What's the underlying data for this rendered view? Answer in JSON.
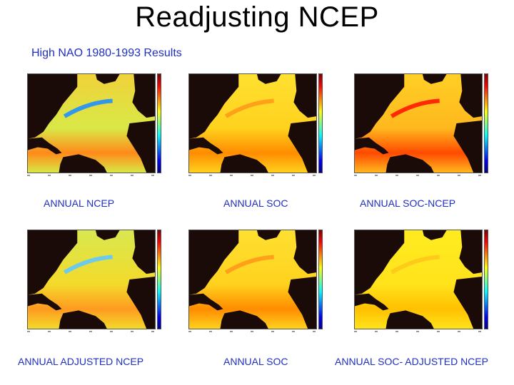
{
  "slide": {
    "title": "Readjusting NCEP",
    "subtitle": "High NAO 1980-1993 Results"
  },
  "panels": [
    {
      "caption": "ANNUAL NCEP",
      "ocean": "#d9e846",
      "gulf": "#1e90ff",
      "band": "#ff8a1a",
      "north": "#f0d23a"
    },
    {
      "caption": "ANNUAL SOC",
      "ocean": "#ffd21e",
      "gulf": "#ff9a1a",
      "band": "#ff8c00",
      "north": "#ffe030"
    },
    {
      "caption": "ANNUAL SOC-NCEP",
      "ocean": "#ffb81e",
      "gulf": "#ff1a00",
      "band": "#ff4a00",
      "north": "#ffcf25"
    },
    {
      "caption": "ANNUAL ADJUSTED NCEP",
      "ocean": "#f3da2a",
      "gulf": "#5fc8ff",
      "band": "#ff9a20",
      "north": "#d8e850"
    },
    {
      "caption": "ANNUAL SOC",
      "ocean": "#ffd21e",
      "gulf": "#ff9a1a",
      "band": "#ff8c00",
      "north": "#ffe030"
    },
    {
      "caption": "ANNUAL SOC- ADJUSTED NCEP",
      "ocean": "#ffe31c",
      "gulf": "#ffc81a",
      "band": "#ffc000",
      "north": "#ffeb20"
    }
  ]
}
